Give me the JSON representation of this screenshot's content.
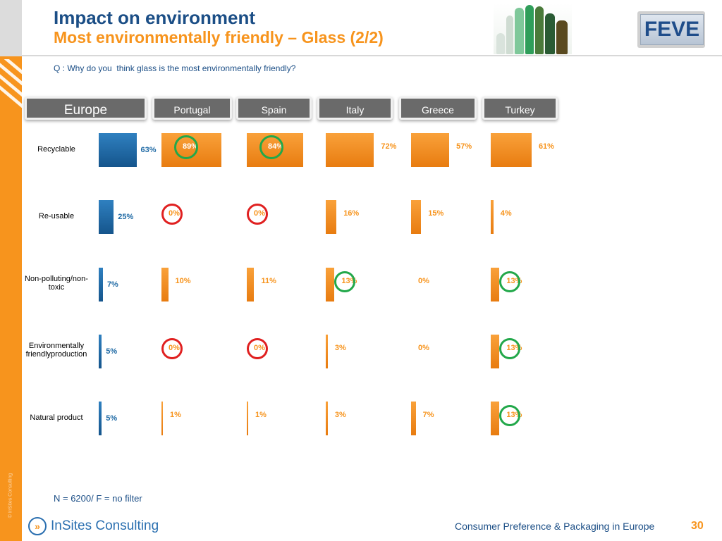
{
  "header": {
    "title": "Impact on environment",
    "subtitle": "Most environmentally friendly – Glass (2/2)",
    "question": "Q : Why do you  think glass is the most environmentally friendly?"
  },
  "logo": {
    "text": "FEVE"
  },
  "side_copyright": "© InSites Consulting",
  "tabs": [
    "Europe",
    "Portugal",
    "Spain",
    "Italy",
    "Greece",
    "Turkey"
  ],
  "chart_data": {
    "type": "bar",
    "orientation": "horizontal",
    "categories": [
      "Recyclable",
      "Re-usable",
      "Non-polluting/non-toxic",
      "Environmentally friendly production",
      "Natural product"
    ],
    "category_labels": [
      "Recyclable",
      "Re-usable",
      "Non-polluting/non-\ntoxic",
      "Environmentally\nfriendlyproduction",
      "Natural product"
    ],
    "series": [
      {
        "name": "Europe",
        "values": [
          63,
          25,
          7,
          5,
          5
        ],
        "labels": [
          "63%",
          "25%",
          "7%",
          "5%",
          "5%"
        ],
        "color": "#1f6aa5"
      },
      {
        "name": "Portugal",
        "values": [
          89,
          0,
          10,
          0,
          1
        ],
        "labels": [
          "89%",
          "0%",
          "10%",
          "0%",
          "1%"
        ],
        "color": "#f7941d"
      },
      {
        "name": "Spain",
        "values": [
          84,
          0,
          11,
          0,
          1
        ],
        "labels": [
          "84%",
          "0%",
          "11%",
          "0%",
          "1%"
        ],
        "color": "#f7941d"
      },
      {
        "name": "Italy",
        "values": [
          72,
          16,
          13,
          3,
          3
        ],
        "labels": [
          "72%",
          "16%",
          "13%",
          "3%",
          "3%"
        ],
        "color": "#f7941d"
      },
      {
        "name": "Greece",
        "values": [
          57,
          15,
          0,
          0,
          7
        ],
        "labels": [
          "57%",
          "15%",
          "0%",
          "0%",
          "7%"
        ],
        "color": "#f7941d"
      },
      {
        "name": "Turkey",
        "values": [
          61,
          4,
          13,
          13,
          13
        ],
        "labels": [
          "61%",
          "4%",
          "13%",
          "13%",
          "13%"
        ],
        "color": "#f7941d"
      }
    ],
    "highlights": [
      {
        "series": "Portugal",
        "category": "Recyclable",
        "color": "#22a84a"
      },
      {
        "series": "Spain",
        "category": "Recyclable",
        "color": "#22a84a"
      },
      {
        "series": "Portugal",
        "category": "Re-usable",
        "color": "#e02020"
      },
      {
        "series": "Spain",
        "category": "Re-usable",
        "color": "#e02020"
      },
      {
        "series": "Italy",
        "category": "Non-polluting/non-toxic",
        "color": "#22a84a"
      },
      {
        "series": "Turkey",
        "category": "Non-polluting/non-toxic",
        "color": "#22a84a"
      },
      {
        "series": "Portugal",
        "category": "Environmentally friendly production",
        "color": "#e02020"
      },
      {
        "series": "Spain",
        "category": "Environmentally friendly production",
        "color": "#e02020"
      },
      {
        "series": "Turkey",
        "category": "Environmentally friendly production",
        "color": "#22a84a"
      },
      {
        "series": "Turkey",
        "category": "Natural product",
        "color": "#22a84a"
      }
    ]
  },
  "base_note": "N = 6200/ F = no filter",
  "footer": {
    "brand": "InSites Consulting",
    "title": "Consumer Preference & Packaging in Europe",
    "page": "30"
  }
}
